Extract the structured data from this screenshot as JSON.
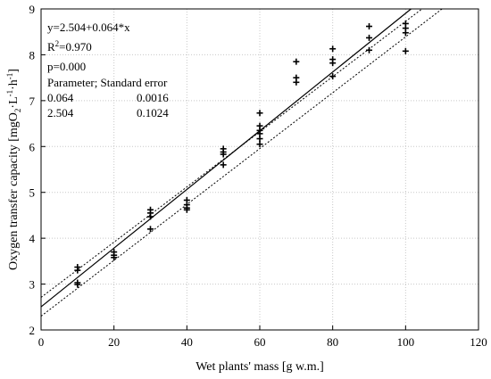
{
  "chart_data": {
    "type": "scatter",
    "xlabel": "Wet plants' mass [g w.m.]",
    "ylabel_parts": [
      "Oxygen transfer capacity [mgO",
      "2",
      "·L",
      "-1",
      "·h",
      "-1",
      "]"
    ],
    "xlim": [
      0,
      120
    ],
    "ylim": [
      2,
      9
    ],
    "x_ticks": [
      0,
      20,
      40,
      60,
      80,
      100,
      120
    ],
    "y_ticks": [
      2,
      3,
      4,
      5,
      6,
      7,
      8,
      9
    ],
    "grid": true,
    "marker": "+",
    "points": [
      {
        "x": 10,
        "y": 3.37
      },
      {
        "x": 10,
        "y": 3.3
      },
      {
        "x": 10,
        "y": 3.03
      },
      {
        "x": 10,
        "y": 2.99
      },
      {
        "x": 20,
        "y": 3.7
      },
      {
        "x": 20,
        "y": 3.63
      },
      {
        "x": 20,
        "y": 3.58
      },
      {
        "x": 30,
        "y": 4.62
      },
      {
        "x": 30,
        "y": 4.55
      },
      {
        "x": 30,
        "y": 4.47
      },
      {
        "x": 30,
        "y": 4.2
      },
      {
        "x": 40,
        "y": 4.83
      },
      {
        "x": 40,
        "y": 4.73
      },
      {
        "x": 40,
        "y": 4.66
      },
      {
        "x": 40,
        "y": 4.62
      },
      {
        "x": 50,
        "y": 5.95
      },
      {
        "x": 50,
        "y": 5.88
      },
      {
        "x": 50,
        "y": 5.83
      },
      {
        "x": 50,
        "y": 5.6
      },
      {
        "x": 60,
        "y": 6.73
      },
      {
        "x": 60,
        "y": 6.45
      },
      {
        "x": 60,
        "y": 6.35
      },
      {
        "x": 60,
        "y": 6.28
      },
      {
        "x": 60,
        "y": 6.17
      },
      {
        "x": 60,
        "y": 6.05
      },
      {
        "x": 70,
        "y": 7.85
      },
      {
        "x": 70,
        "y": 7.5
      },
      {
        "x": 70,
        "y": 7.4
      },
      {
        "x": 80,
        "y": 8.13
      },
      {
        "x": 80,
        "y": 7.9
      },
      {
        "x": 80,
        "y": 7.82
      },
      {
        "x": 80,
        "y": 7.53
      },
      {
        "x": 90,
        "y": 8.62
      },
      {
        "x": 90,
        "y": 8.37
      },
      {
        "x": 90,
        "y": 8.1
      },
      {
        "x": 100,
        "y": 8.68
      },
      {
        "x": 100,
        "y": 8.58
      },
      {
        "x": 100,
        "y": 8.48
      },
      {
        "x": 100,
        "y": 8.08
      }
    ],
    "regression": {
      "intercept": 2.504,
      "slope": 0.064
    },
    "confidence_band": {
      "upper": [
        [
          0,
          2.71
        ],
        [
          104.5,
          9.0
        ]
      ],
      "lower": [
        [
          0,
          2.3
        ],
        [
          110,
          9.0
        ]
      ]
    },
    "annotations": [
      {
        "text": "y=2.504+0.064*x"
      },
      {
        "text": "R",
        "sup": "2",
        "after": "=0.970"
      },
      {
        "text": "p=0.000"
      },
      {
        "text": "Parameter;  Standard error"
      },
      {
        "cols": [
          "0.064",
          "0.0016"
        ]
      },
      {
        "cols": [
          "2.504",
          "0.1024"
        ]
      }
    ]
  }
}
